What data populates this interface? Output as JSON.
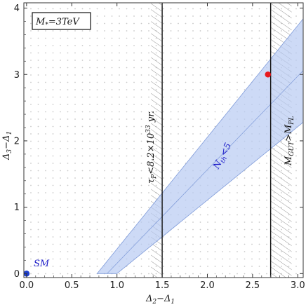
{
  "chart_data": {
    "type": "scatter",
    "xlabel": "Δ₂−Δ₁",
    "ylabel": "Δ₃−Δ₁",
    "xlim": [
      -0.03,
      3.06
    ],
    "ylim": [
      -0.06,
      4.08
    ],
    "xticks": [
      "0.0",
      "0.5",
      "1.0",
      "1.5",
      "2.0",
      "2.5",
      "3.0"
    ],
    "yticks": [
      "0",
      "1",
      "2",
      "3",
      "4"
    ],
    "grid": "dotted",
    "legend_box": "M*=3TeV",
    "points": [
      {
        "name": "SM",
        "x": 0.0,
        "y": 0.0,
        "color": "#1f3fd0"
      },
      {
        "name": "",
        "x": 2.67,
        "y": 3.0,
        "color": "#e8191e"
      }
    ],
    "band": {
      "label": "N_th<5",
      "lower_edge": [
        [
          1.0,
          0.0
        ],
        [
          3.06,
          2.28
        ]
      ],
      "upper_edge": [
        [
          0.78,
          0.0
        ],
        [
          3.06,
          3.84
        ]
      ],
      "center_line": [
        [
          0.89,
          0.0
        ],
        [
          3.06,
          3.06
        ]
      ],
      "color": "#b8cbf2"
    },
    "constraints": [
      {
        "label": "τP<8.2×10³³ yr.",
        "x": 1.5,
        "side": "left",
        "hatch": true
      },
      {
        "label": "MGUT>MPL",
        "x": 2.7,
        "side": "right",
        "hatch": true
      }
    ]
  },
  "texts": {
    "legend_main": "M",
    "legend_sub": "*",
    "legend_rest": "=3TeV",
    "sm_label": "SM",
    "band_main": "N",
    "band_sub": "th",
    "band_rest": "<5",
    "tau_t": "τ",
    "tau_p": "P",
    "tau_mid": "<8.2×10",
    "tau_exp": "33",
    "tau_end": " yr.",
    "mgut_m": "M",
    "mgut_sub": "GUT",
    "mgut_gt": ">M",
    "mgut_pl": "PL",
    "xlab_a": "Δ",
    "xlab_a_sub": "2",
    "xlab_mid": "−Δ",
    "xlab_b_sub": "1",
    "ylab_a": "Δ",
    "ylab_a_sub": "3",
    "ylab_mid": "−Δ",
    "ylab_b_sub": "1"
  }
}
